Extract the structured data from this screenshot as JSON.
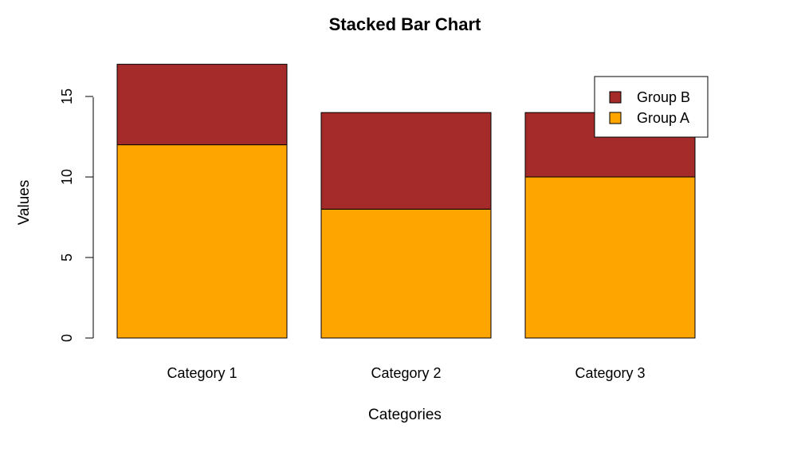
{
  "chart_data": {
    "type": "bar",
    "stacked": true,
    "title": "Stacked Bar Chart",
    "xlabel": "Categories",
    "ylabel": "Values",
    "categories": [
      "Category 1",
      "Category 2",
      "Category 3"
    ],
    "series": [
      {
        "name": "Group A",
        "values": [
          12,
          8,
          10
        ],
        "color": "#FFA500"
      },
      {
        "name": "Group B",
        "values": [
          5,
          6,
          4
        ],
        "color": "#A52A2A"
      }
    ],
    "ylim": [
      0,
      17
    ],
    "yticks": [
      0,
      5,
      10,
      15
    ],
    "grid": false,
    "legend_position": "top-right",
    "legend_order": [
      "Group B",
      "Group A"
    ]
  }
}
